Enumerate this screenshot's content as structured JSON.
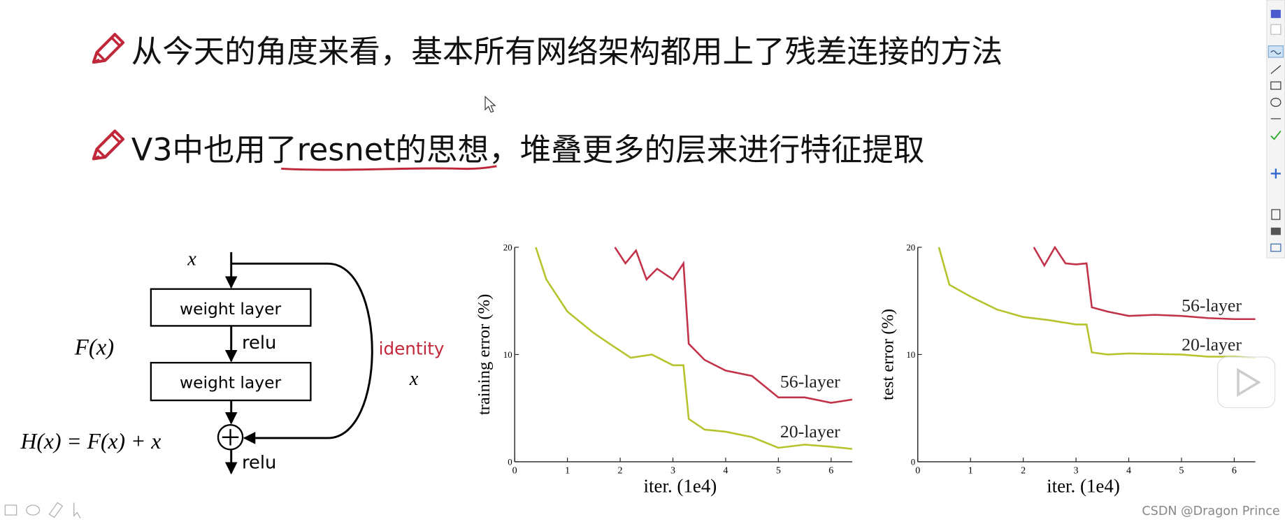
{
  "bullets": [
    "从今天的角度来看，基本所有网络架构都用上了残差连接的方法",
    "V3中也用了resnet的思想，堆叠更多的层来进行特征提取"
  ],
  "diagram": {
    "input": "x",
    "layer_1": "weight layer",
    "relu_1": "relu",
    "layer_2": "weight layer",
    "residual": "F(x)",
    "shortcut": "identity",
    "shortcut_x": "x",
    "output": "H(x) = F(x) + x",
    "relu_2": "relu"
  },
  "chart_data": [
    {
      "type": "line",
      "y_label": "training error (%)",
      "x_label": "iter. (1e4)",
      "xlim": [
        0,
        6.4
      ],
      "xticks": [
        0,
        1,
        2,
        3,
        4,
        5,
        6
      ],
      "ylim": [
        0,
        20
      ],
      "yticks": [
        0,
        10,
        20
      ],
      "series": [
        {
          "name": "56-layer",
          "color": "#c2334a",
          "x": [
            1.9,
            2.1,
            2.3,
            2.5,
            2.7,
            3.0,
            3.2,
            3.3,
            3.6,
            4.0,
            4.5,
            5.0,
            5.5,
            6.0,
            6.4
          ],
          "values": [
            20,
            18.5,
            19.7,
            17,
            18,
            17,
            18.5,
            11,
            9.5,
            8.5,
            8,
            6,
            6,
            5.5,
            5.8
          ]
        },
        {
          "name": "20-layer",
          "color": "#b5c42c",
          "x": [
            0.4,
            0.6,
            1.0,
            1.5,
            1.8,
            2.2,
            2.6,
            3.0,
            3.2,
            3.3,
            3.6,
            4.0,
            4.5,
            5.0,
            5.5,
            6.0,
            6.4
          ],
          "values": [
            20,
            17,
            14,
            12,
            11,
            9.7,
            10,
            9,
            9,
            4,
            3,
            2.8,
            2.3,
            1.3,
            1.6,
            1.4,
            1.2
          ]
        }
      ]
    },
    {
      "type": "line",
      "y_label": "test error (%)",
      "x_label": "iter. (1e4)",
      "xlim": [
        0,
        6.4
      ],
      "xticks": [
        0,
        1,
        2,
        3,
        4,
        5,
        6
      ],
      "ylim": [
        0,
        20
      ],
      "yticks": [
        0,
        10,
        20
      ],
      "series": [
        {
          "name": "56-layer",
          "color": "#c2334a",
          "x": [
            2.2,
            2.4,
            2.6,
            2.8,
            3.0,
            3.2,
            3.3,
            3.6,
            4.0,
            4.5,
            5.0,
            5.5,
            6.0,
            6.4
          ],
          "values": [
            20,
            18.3,
            20,
            18.5,
            18.4,
            18.5,
            14.4,
            14,
            13.6,
            13.7,
            13.6,
            13.4,
            13.3,
            13.3
          ]
        },
        {
          "name": "20-layer",
          "color": "#b5c42c",
          "x": [
            0.4,
            0.6,
            1.0,
            1.5,
            2.0,
            2.5,
            3.0,
            3.2,
            3.3,
            3.6,
            4.0,
            5.0,
            5.5,
            6.0,
            6.4
          ],
          "values": [
            20,
            16.5,
            15.4,
            14.2,
            13.5,
            13.2,
            12.8,
            12.8,
            10.2,
            10,
            10.1,
            10,
            9.8,
            9.8,
            9.7
          ]
        }
      ]
    }
  ],
  "watermark": "CSDN @Dragon Prince"
}
